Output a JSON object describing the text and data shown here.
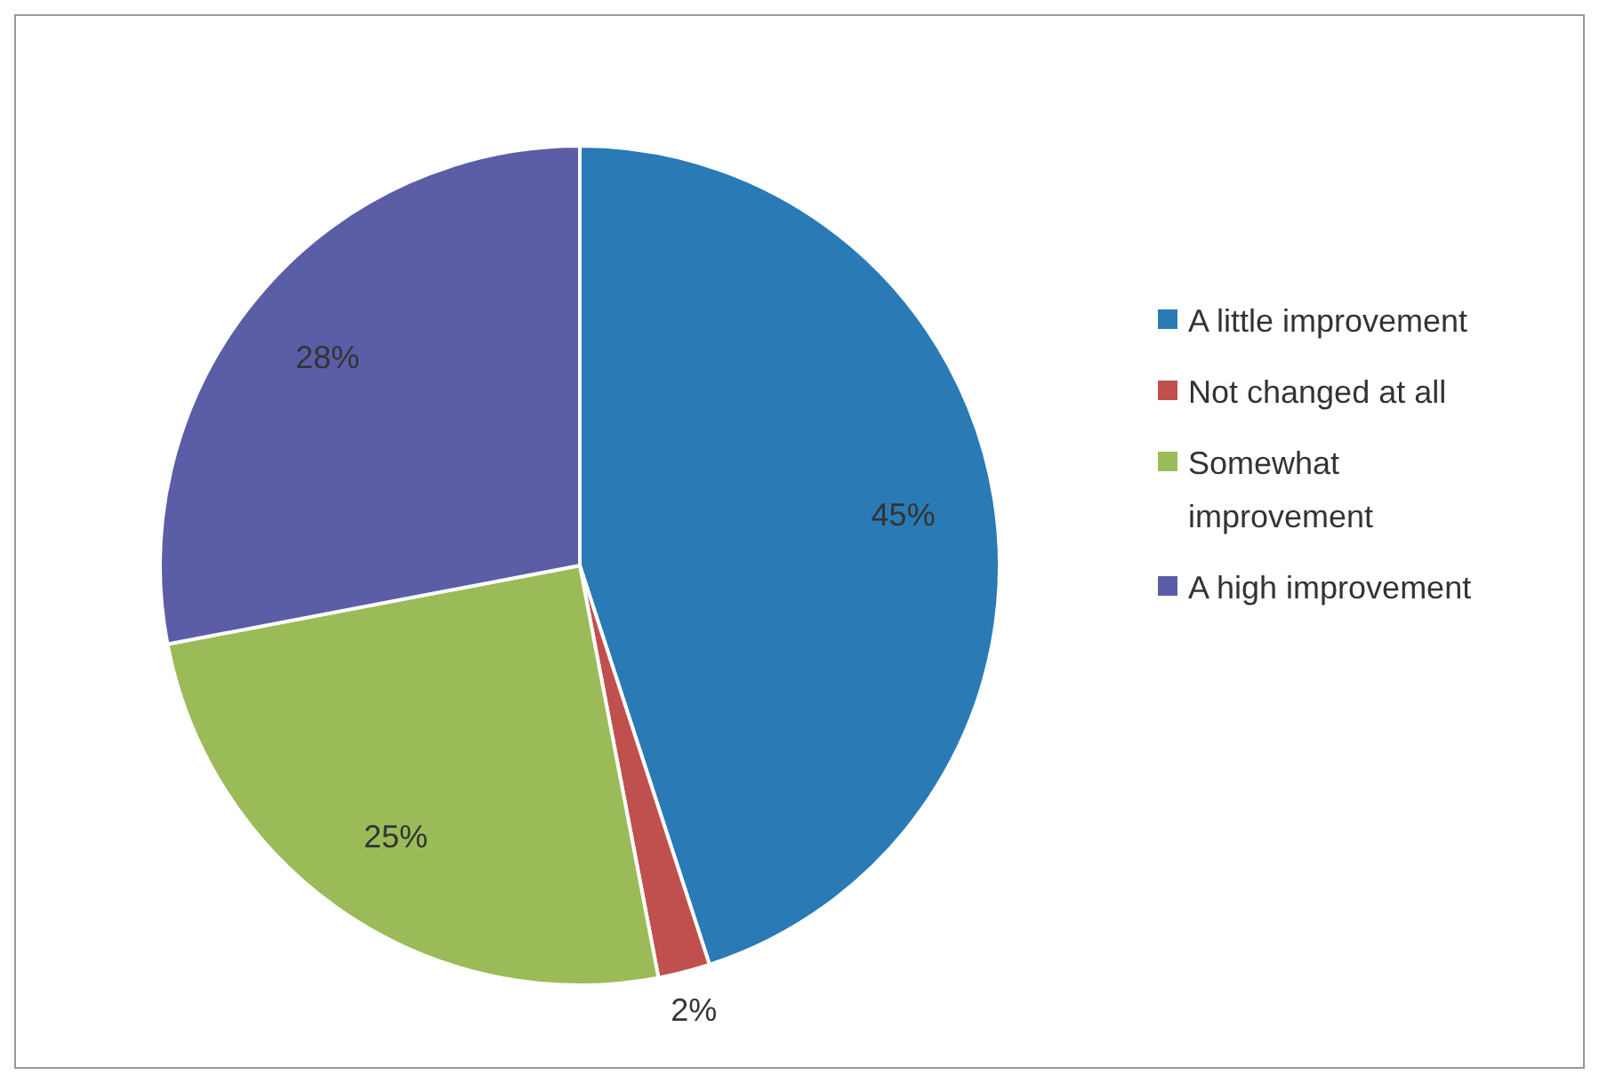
{
  "chart_data": {
    "type": "pie",
    "categories": [
      "A little improvement",
      "Not changed at all",
      "Somewhat improvement",
      "A high improvement"
    ],
    "values": [
      45,
      2,
      25,
      28
    ],
    "colors": [
      "#2a7ab5",
      "#c0504d",
      "#9bbb59",
      "#5b5ea6"
    ],
    "value_labels": [
      "45%",
      "2%",
      "25%",
      "28%"
    ],
    "legend": "right"
  }
}
